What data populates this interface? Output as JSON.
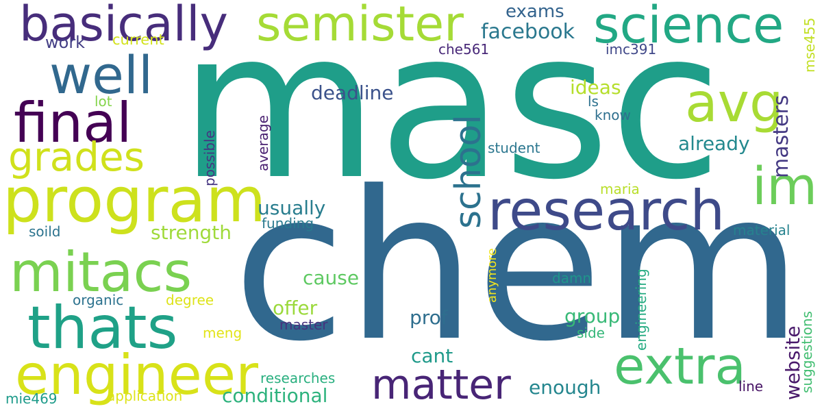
{
  "words": [
    {
      "text": "masc",
      "color": "#1f9e89"
    },
    {
      "text": "chem",
      "color": "#31688e"
    },
    {
      "text": "research",
      "color": "#3e4a89"
    },
    {
      "text": "program",
      "color": "#cde11d"
    },
    {
      "text": "semister",
      "color": "#a5db36"
    },
    {
      "text": "science",
      "color": "#22a884"
    },
    {
      "text": "basically",
      "color": "#472d7b"
    },
    {
      "text": "well",
      "color": "#31688e"
    },
    {
      "text": "final",
      "color": "#440154"
    },
    {
      "text": "grades",
      "color": "#d0e11c"
    },
    {
      "text": "mitacs",
      "color": "#7ad151"
    },
    {
      "text": "thats",
      "color": "#1fa187"
    },
    {
      "text": "engineer",
      "color": "#d8e219"
    },
    {
      "text": "matter",
      "color": "#482576"
    },
    {
      "text": "extra",
      "color": "#4ac16d"
    },
    {
      "text": "avg",
      "color": "#a8db34"
    },
    {
      "text": "im",
      "color": "#6ccd5a"
    },
    {
      "text": "school",
      "color": "#2c728e"
    },
    {
      "text": "masters",
      "color": "#443983"
    },
    {
      "text": "website",
      "color": "#48186a"
    },
    {
      "text": "exams",
      "color": "#33638d"
    },
    {
      "text": "facebook",
      "color": "#2a788e"
    },
    {
      "text": "deadline",
      "color": "#3b528b"
    },
    {
      "text": "ideas",
      "color": "#b5de2b"
    },
    {
      "text": "already",
      "color": "#23898e"
    },
    {
      "text": "usually",
      "color": "#287d8e"
    },
    {
      "text": "strength",
      "color": "#9fda3a"
    },
    {
      "text": "cause",
      "color": "#5ec962"
    },
    {
      "text": "offer",
      "color": "#9bd93c"
    },
    {
      "text": "prof",
      "color": "#2e6e8e"
    },
    {
      "text": "group",
      "color": "#38b977"
    },
    {
      "text": "cant",
      "color": "#1f9a8a"
    },
    {
      "text": "enough",
      "color": "#24868e"
    },
    {
      "text": "conditional",
      "color": "#2db27d"
    },
    {
      "text": "work",
      "color": "#433e85"
    },
    {
      "text": "current",
      "color": "#d2e21b"
    },
    {
      "text": "che561",
      "color": "#482878"
    },
    {
      "text": "imc391",
      "color": "#3f4788"
    },
    {
      "text": "mse455",
      "color": "#c2df23"
    },
    {
      "text": "lot",
      "color": "#84d44b"
    },
    {
      "text": "ls",
      "color": "#2d718e"
    },
    {
      "text": "know",
      "color": "#2e6f8e"
    },
    {
      "text": "student",
      "color": "#2a768e"
    },
    {
      "text": "possible",
      "color": "#453581"
    },
    {
      "text": "average",
      "color": "#481f70"
    },
    {
      "text": "maria",
      "color": "#b8de29"
    },
    {
      "text": "funding",
      "color": "#29798e"
    },
    {
      "text": "soild",
      "color": "#2c738e"
    },
    {
      "text": "material",
      "color": "#26828e"
    },
    {
      "text": "anymore",
      "color": "#f1e51d"
    },
    {
      "text": "damn",
      "color": "#1f958b"
    },
    {
      "text": "engineering",
      "color": "#25ab82"
    },
    {
      "text": "suggestions",
      "color": "#42be71"
    },
    {
      "text": "organic",
      "color": "#2c728e"
    },
    {
      "text": "degree",
      "color": "#dde318"
    },
    {
      "text": "meng",
      "color": "#e2e418"
    },
    {
      "text": "master",
      "color": "#46327e"
    },
    {
      "text": "side",
      "color": "#35b779"
    },
    {
      "text": "researches",
      "color": "#29af7f"
    },
    {
      "text": "application",
      "color": "#dde318"
    },
    {
      "text": "line",
      "color": "#471365"
    },
    {
      "text": "mie469",
      "color": "#1e9b8a"
    }
  ]
}
